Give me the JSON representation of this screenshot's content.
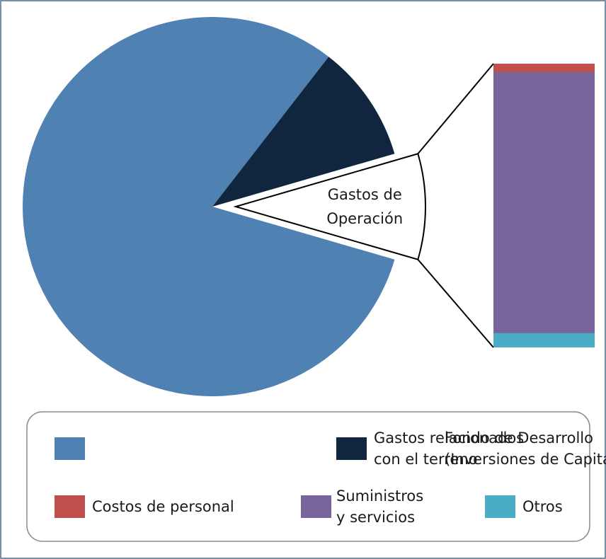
{
  "chart_data": {
    "type": "pie-of-bar",
    "pie": {
      "categories": [
        "Fondo de Desarrollo\n(Inversiones de Capital)",
        "Gastos relacionados\ncon el terreno",
        "Gastos de\nOperación"
      ],
      "values": [
        81,
        10,
        9
      ],
      "colors": [
        "#4f81b3",
        "#10263f",
        "#ffffff"
      ]
    },
    "bar": {
      "categories": [
        "Costos de personal",
        "Suministros\ny servicios",
        "Otros"
      ],
      "values": [
        3,
        92,
        5
      ],
      "colors": [
        "#c0504d",
        "#77659c",
        "#4bacc6"
      ]
    }
  }
}
